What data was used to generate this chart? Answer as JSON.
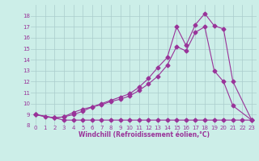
{
  "bg_color": "#cceee8",
  "grid_color": "#aacccc",
  "line_color": "#993399",
  "xlabel": "Windchill (Refroidissement éolien,°C)",
  "xlabel_color": "#993399",
  "xlim": [
    -0.5,
    23.5
  ],
  "ylim": [
    8,
    19
  ],
  "xticks": [
    0,
    1,
    2,
    3,
    4,
    5,
    6,
    7,
    8,
    9,
    10,
    11,
    12,
    13,
    14,
    15,
    16,
    17,
    18,
    19,
    20,
    21,
    22,
    23
  ],
  "yticks": [
    8,
    9,
    10,
    11,
    12,
    13,
    14,
    15,
    16,
    17,
    18
  ],
  "line1_x": [
    0,
    1,
    2,
    3,
    4,
    5,
    6,
    7,
    8,
    9,
    10,
    11,
    12,
    13,
    14,
    15,
    16,
    17,
    18,
    19,
    20,
    21,
    22,
    23
  ],
  "line1_y": [
    9.0,
    8.8,
    8.7,
    8.5,
    8.5,
    8.5,
    8.5,
    8.5,
    8.5,
    8.5,
    8.5,
    8.5,
    8.5,
    8.5,
    8.5,
    8.5,
    8.5,
    8.5,
    8.5,
    8.5,
    8.5,
    8.5,
    8.5,
    8.5
  ],
  "line2_x": [
    0,
    2,
    3,
    4,
    5,
    6,
    7,
    8,
    9,
    10,
    11,
    12,
    13,
    14,
    15,
    16,
    17,
    18,
    19,
    20,
    21,
    23
  ],
  "line2_y": [
    9.0,
    8.7,
    8.8,
    9.2,
    9.5,
    9.7,
    9.9,
    10.2,
    10.4,
    10.7,
    11.2,
    11.8,
    12.5,
    13.5,
    15.2,
    14.8,
    16.5,
    17.0,
    13.0,
    12.0,
    9.8,
    8.5
  ],
  "line3_x": [
    0,
    2,
    3,
    4,
    5,
    6,
    7,
    8,
    9,
    10,
    11,
    12,
    13,
    14,
    15,
    16,
    17,
    18,
    19,
    20,
    21,
    23
  ],
  "line3_y": [
    9.0,
    8.7,
    8.8,
    9.0,
    9.3,
    9.7,
    10.0,
    10.3,
    10.6,
    10.9,
    11.5,
    12.3,
    13.3,
    14.2,
    17.0,
    15.3,
    17.2,
    18.2,
    17.1,
    16.8,
    12.0,
    8.5
  ],
  "marker": "D",
  "markersize": 2.5,
  "linewidth": 0.8
}
